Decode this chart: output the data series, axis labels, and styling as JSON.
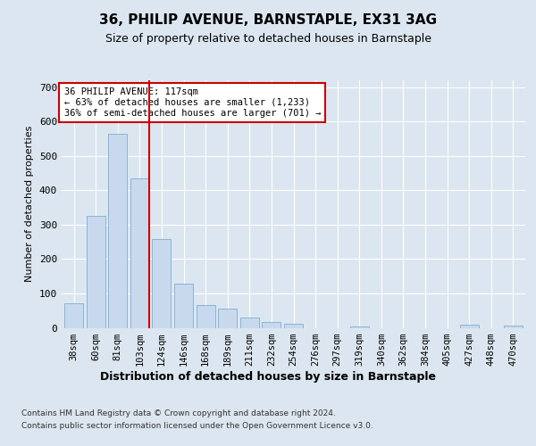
{
  "title": "36, PHILIP AVENUE, BARNSTAPLE, EX31 3AG",
  "subtitle": "Size of property relative to detached houses in Barnstaple",
  "xlabel": "Distribution of detached houses by size in Barnstaple",
  "ylabel": "Number of detached properties",
  "categories": [
    "38sqm",
    "60sqm",
    "81sqm",
    "103sqm",
    "124sqm",
    "146sqm",
    "168sqm",
    "189sqm",
    "211sqm",
    "232sqm",
    "254sqm",
    "276sqm",
    "297sqm",
    "319sqm",
    "340sqm",
    "362sqm",
    "384sqm",
    "405sqm",
    "427sqm",
    "448sqm",
    "470sqm"
  ],
  "values": [
    72,
    325,
    565,
    435,
    258,
    128,
    65,
    55,
    30,
    18,
    12,
    0,
    0,
    5,
    0,
    0,
    0,
    0,
    8,
    0,
    6
  ],
  "bar_color": "#c9d9ed",
  "bar_edge_color": "#7bafd4",
  "highlight_index": 3,
  "highlight_line_color": "#cc0000",
  "annotation_text": "36 PHILIP AVENUE: 117sqm\n← 63% of detached houses are smaller (1,233)\n36% of semi-detached houses are larger (701) →",
  "annotation_box_color": "#ffffff",
  "annotation_box_edge_color": "#cc0000",
  "ylim": [
    0,
    720
  ],
  "yticks": [
    0,
    100,
    200,
    300,
    400,
    500,
    600,
    700
  ],
  "background_color": "#dce6f0",
  "plot_background_color": "#dce6f0",
  "grid_color": "#ffffff",
  "footer_line1": "Contains HM Land Registry data © Crown copyright and database right 2024.",
  "footer_line2": "Contains public sector information licensed under the Open Government Licence v3.0."
}
